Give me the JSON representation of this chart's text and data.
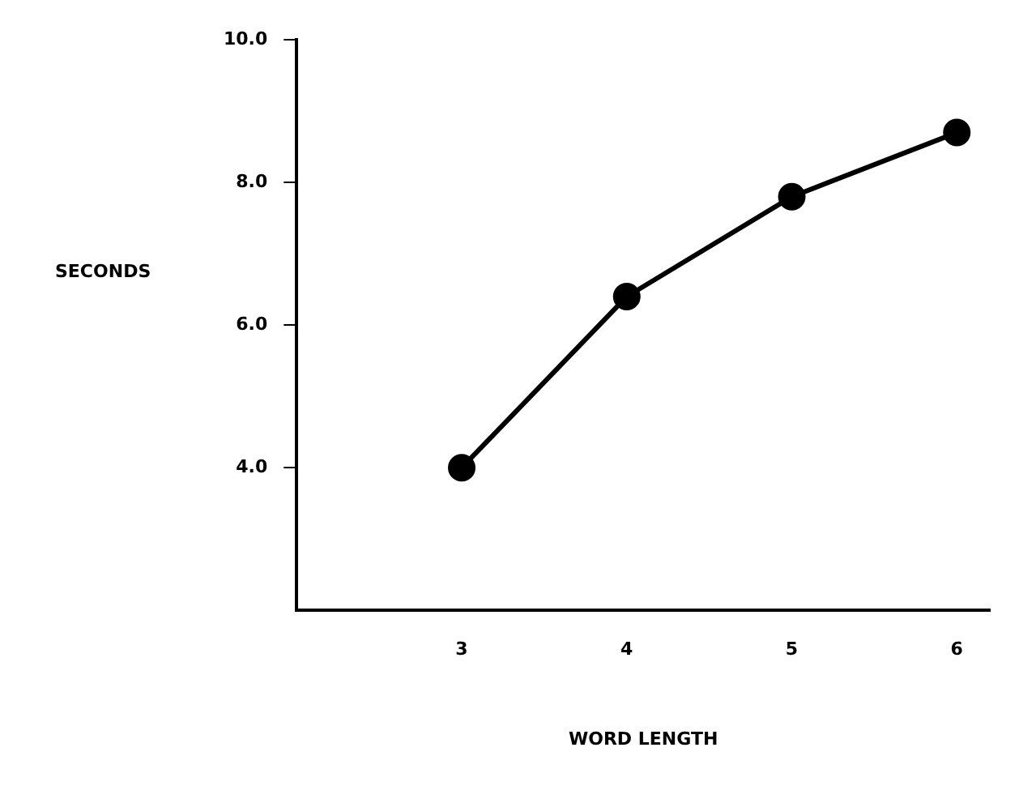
{
  "chart_data": {
    "type": "line",
    "xlabel": "WORD LENGTH",
    "ylabel": "SECONDS",
    "x": [
      3,
      4,
      5,
      6
    ],
    "series": [
      {
        "color": "#000000",
        "values": [
          4.0,
          6.4,
          7.8,
          8.7
        ]
      }
    ],
    "xlim": [
      2,
      6.2
    ],
    "xticks": [
      3,
      4,
      5,
      6
    ],
    "ylim": [
      2,
      10
    ],
    "yticks": [
      {
        "value": 4,
        "label": "4.0"
      },
      {
        "value": 6,
        "label": "6.0"
      },
      {
        "value": 8,
        "label": "8.0"
      },
      {
        "value": 10,
        "label": "10.0"
      }
    ],
    "grid": false,
    "legend": false,
    "marker": "circle",
    "line_style": "solid"
  }
}
